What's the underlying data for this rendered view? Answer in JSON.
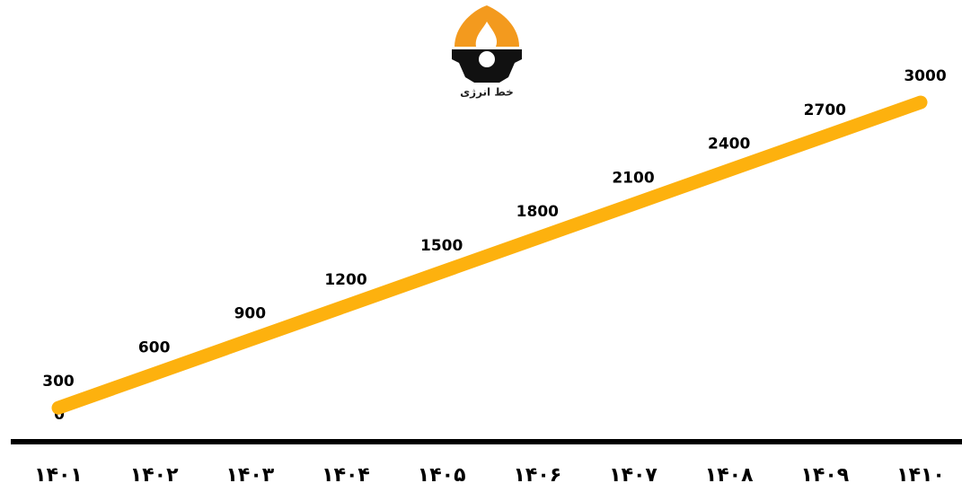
{
  "chart_data": {
    "type": "line",
    "logo_text": "خط انرژی",
    "annotation": "0",
    "categories": [
      "۱۴۰۱",
      "۱۴۰۲",
      "۱۴۰۳",
      "۱۴۰۴",
      "۱۴۰۵",
      "۱۴۰۶",
      "۱۴۰۷",
      "۱۴۰۸",
      "۱۴۰۹",
      "۱۴۱۰"
    ],
    "series": [
      {
        "color": "#fdb10e",
        "values": [
          300,
          600,
          900,
          1200,
          1500,
          1800,
          2100,
          2400,
          2700,
          3000
        ]
      }
    ],
    "ylim": [
      0,
      3000
    ]
  }
}
